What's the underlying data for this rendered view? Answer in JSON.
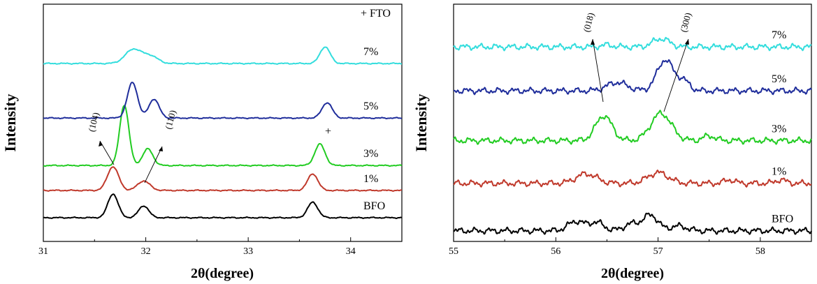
{
  "chart_data": [
    {
      "type": "line",
      "xlabel": "2θ(degree)",
      "ylabel": "Intensity",
      "xlim": [
        31,
        34.5
      ],
      "xticks": [
        {
          "value": 31,
          "label": "31"
        },
        {
          "value": 32,
          "label": "32"
        },
        {
          "value": 33,
          "label": "33"
        },
        {
          "value": 34,
          "label": "34"
        }
      ],
      "legend_note": "+ FTO",
      "series": [
        {
          "name": "BFO",
          "color": "#000000",
          "baseline": 0.1,
          "peaks": [
            [
              31.68,
              0.1,
              0.05
            ],
            [
              31.98,
              0.05,
              0.05
            ],
            [
              33.63,
              0.065,
              0.05
            ]
          ]
        },
        {
          "name": "1%",
          "color": "#c0392b",
          "baseline": 0.215,
          "peaks": [
            [
              31.68,
              0.1,
              0.055
            ],
            [
              31.98,
              0.04,
              0.06
            ],
            [
              33.63,
              0.07,
              0.05
            ]
          ]
        },
        {
          "name": "3%",
          "color": "#22cc22",
          "baseline": 0.32,
          "peaks": [
            [
              31.79,
              0.255,
              0.045
            ],
            [
              32.02,
              0.07,
              0.05
            ],
            [
              33.7,
              0.09,
              0.05
            ]
          ]
        },
        {
          "name": "5%",
          "color": "#1f2d9b",
          "baseline": 0.52,
          "peaks": [
            [
              31.87,
              0.15,
              0.05
            ],
            [
              32.08,
              0.08,
              0.05
            ],
            [
              33.77,
              0.065,
              0.05
            ]
          ]
        },
        {
          "name": "7%",
          "color": "#33dddd",
          "baseline": 0.75,
          "peaks": [
            [
              31.88,
              0.06,
              0.08
            ],
            [
              32.05,
              0.03,
              0.07
            ],
            [
              33.75,
              0.07,
              0.05
            ]
          ]
        }
      ],
      "annotations": [
        {
          "text": "(104)",
          "x": 31.52,
          "y": 0.5
        },
        {
          "text": "(110)",
          "x": 32.27,
          "y": 0.51
        },
        {
          "text": "+",
          "x": 33.78,
          "y": 0.45
        }
      ]
    },
    {
      "type": "line",
      "xlabel": "2θ(degree)",
      "ylabel": "Intensity",
      "xlim": [
        55,
        58.5
      ],
      "xticks": [
        {
          "value": 55,
          "label": "55"
        },
        {
          "value": 56,
          "label": "56"
        },
        {
          "value": 57,
          "label": "57"
        },
        {
          "value": 58,
          "label": "58"
        }
      ],
      "series": [
        {
          "name": "BFO",
          "color": "#000000",
          "baseline": 0.045,
          "peaks": [
            [
              56.2,
              0.04,
              0.08
            ],
            [
              56.4,
              0.035,
              0.07
            ],
            [
              56.75,
              0.03,
              0.08
            ],
            [
              56.93,
              0.065,
              0.07
            ],
            [
              57.2,
              0.02,
              0.08
            ]
          ]
        },
        {
          "name": "1%",
          "color": "#c0392b",
          "baseline": 0.245,
          "peaks": [
            [
              56.3,
              0.04,
              0.1
            ],
            [
              57.0,
              0.045,
              0.1
            ],
            [
              57.7,
              0.015,
              0.05
            ],
            [
              58.2,
              0.015,
              0.05
            ]
          ]
        },
        {
          "name": "3%",
          "color": "#22cc22",
          "baseline": 0.425,
          "peaks": [
            [
              56.47,
              0.105,
              0.08
            ],
            [
              57.03,
              0.115,
              0.1
            ],
            [
              57.5,
              0.02,
              0.06
            ]
          ]
        },
        {
          "name": "5%",
          "color": "#1f2d9b",
          "baseline": 0.635,
          "peaks": [
            [
              56.6,
              0.035,
              0.1
            ],
            [
              57.07,
              0.13,
              0.08
            ],
            [
              57.25,
              0.04,
              0.06
            ]
          ]
        },
        {
          "name": "7%",
          "color": "#33dddd",
          "baseline": 0.82,
          "peaks": [
            [
              57.03,
              0.035,
              0.08
            ],
            [
              56.5,
              0.008,
              0.06
            ]
          ]
        }
      ],
      "annotations": [
        {
          "text": "(018)",
          "x": 56.35,
          "y": 0.92
        },
        {
          "text": "(300)",
          "x": 57.3,
          "y": 0.92
        }
      ]
    }
  ]
}
